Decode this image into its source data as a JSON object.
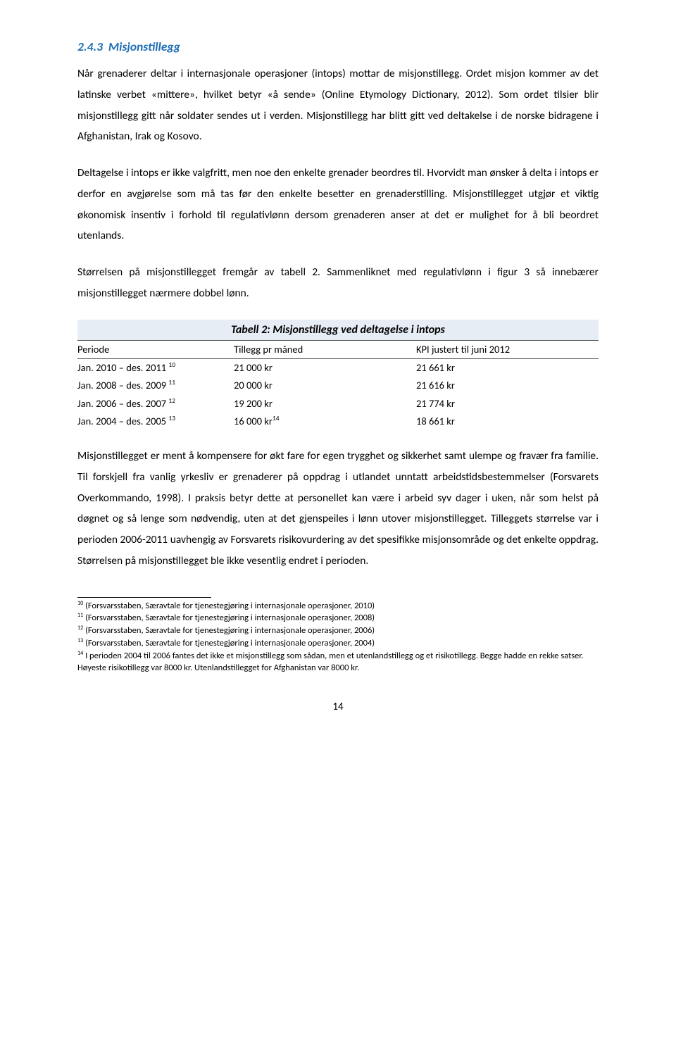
{
  "section": {
    "number": "2.4.3",
    "title": "Misjonstillegg"
  },
  "paragraphs": {
    "p1": "Når grenaderer deltar i internasjonale operasjoner (intops) mottar de misjonstillegg. Ordet misjon kommer av det latinske verbet «mittere», hvilket betyr «å sende» (Online Etymology Dictionary, 2012). Som ordet tilsier blir misjonstillegg gitt når soldater sendes ut i verden. Misjonstillegg har blitt gitt ved deltakelse i de norske bidragene i Afghanistan, Irak og Kosovo.",
    "p2": "Deltagelse i intops er ikke valgfritt, men noe den enkelte grenader beordres til. Hvorvidt man ønsker å delta i intops er derfor en avgjørelse som må tas før den enkelte besetter en grenaderstilling. Misjonstillegget utgjør et viktig økonomisk insentiv i forhold til regulativlønn dersom grenaderen anser at det er mulighet for å bli beordret utenlands.",
    "p3": "Størrelsen på misjonstillegget fremgår av tabell 2. Sammenliknet med regulativlønn i figur 3 så innebærer misjonstillegget nærmere dobbel lønn.",
    "p4": "Misjonstillegget er ment å kompensere for økt fare for egen trygghet og sikkerhet samt ulempe og fravær fra familie. Til forskjell fra vanlig yrkesliv er grenaderer på oppdrag i utlandet unntatt arbeidstidsbestemmelser (Forsvarets Overkommando, 1998). I praksis betyr dette at personellet kan være i arbeid syv dager i uken, når som helst på døgnet og så lenge som nødvendig, uten at det gjenspeiles i lønn utover misjonstillegget. Tilleggets størrelse var i perioden 2006-2011 uavhengig av Forsvarets risikovurdering av det spesifikke misjonsområde og det enkelte oppdrag. Størrelsen på misjonstillegget ble ikke vesentlig endret i perioden."
  },
  "table": {
    "caption": "Tabell 2: Misjonstillegg ved deltagelse i intops",
    "headers": {
      "periode": "Periode",
      "tillegg": "Tillegg pr måned",
      "kpi": "KPI justert til juni 2012"
    },
    "rows": [
      {
        "periode": "Jan. 2010 – des. 2011",
        "sup": "10",
        "tillegg": "21 000 kr",
        "kpi": "21 661 kr"
      },
      {
        "periode": "Jan. 2008 – des. 2009",
        "sup": "11",
        "tillegg": "20 000 kr",
        "kpi": "21 616 kr"
      },
      {
        "periode": "Jan. 2006 – des. 2007",
        "sup": "12",
        "tillegg": "19 200 kr",
        "kpi": "21 774 kr"
      },
      {
        "periode": "Jan. 2004 – des. 2005",
        "sup": "13",
        "tillegg": "16 000 kr",
        "tsup": "14",
        "kpi": "18 661 kr"
      }
    ]
  },
  "footnotes": {
    "f10": "(Forsvarsstaben, Særavtale for tjenestegjøring i internasjonale operasjoner, 2010)",
    "f11": "(Forsvarsstaben, Særavtale for tjenestegjøring i internasjonale operasjoner, 2008)",
    "f12": "(Forsvarsstaben, Særavtale for tjenestegjøring i internasjonale operasjoner, 2006)",
    "f13": "(Forsvarsstaben, Særavtale for tjenestegjøring i internasjonale operasjoner, 2004)",
    "f14": "I perioden 2004 til 2006 fantes det ikke et misjonstillegg som sådan, men et utenlandstillegg og et risikotillegg. Begge hadde en rekke satser. Høyeste risikotillegg var 8000 kr. Utenlandstillegget for Afghanistan var 8000 kr."
  },
  "pageNumber": "14",
  "colors": {
    "heading": "#1f6fb4",
    "text": "#000000",
    "tableHeaderBg": "#e7edf5",
    "background": "#ffffff"
  },
  "fonts": {
    "body_family": "Calibri",
    "body_size_pt": 11,
    "heading_size_pt": 13,
    "footnote_size_pt": 9
  }
}
